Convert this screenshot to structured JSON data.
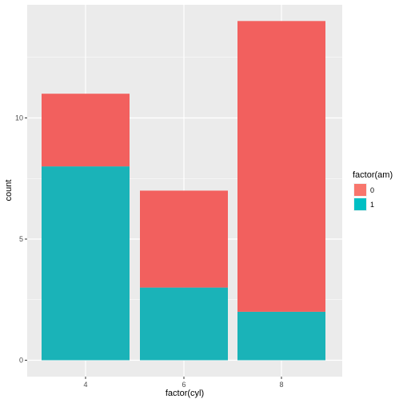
{
  "chart_data": {
    "type": "bar",
    "stacked": true,
    "categories": [
      "4",
      "6",
      "8"
    ],
    "xlabel": "factor(cyl)",
    "ylabel": "count",
    "ylim": [
      0,
      14.7
    ],
    "yticks": [
      0,
      5,
      10
    ],
    "grid": true,
    "legend": {
      "title": "factor(am)",
      "placement": "right",
      "entries": [
        {
          "label": "0",
          "color": "#F8766D"
        },
        {
          "label": "1",
          "color": "#00BFC4"
        }
      ]
    },
    "series": [
      {
        "name": "1",
        "values": [
          8,
          3,
          2
        ],
        "color": "#1AB3B8"
      },
      {
        "name": "0",
        "values": [
          3,
          4,
          12
        ],
        "color": "#F2605E"
      }
    ],
    "panel_background": "#EBEBEB",
    "grid_color": "#FFFFFF"
  }
}
